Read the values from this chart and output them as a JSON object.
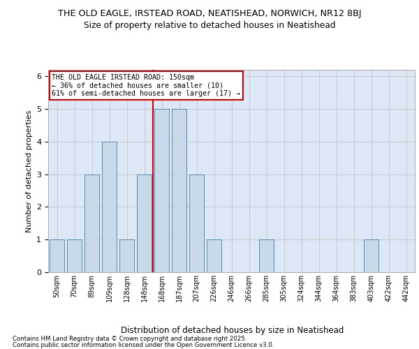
{
  "title_line1": "THE OLD EAGLE, IRSTEAD ROAD, NEATISHEAD, NORWICH, NR12 8BJ",
  "title_line2": "Size of property relative to detached houses in Neatishead",
  "xlabel": "Distribution of detached houses by size in Neatishead",
  "ylabel": "Number of detached properties",
  "bin_labels": [
    "50sqm",
    "70sqm",
    "89sqm",
    "109sqm",
    "128sqm",
    "148sqm",
    "168sqm",
    "187sqm",
    "207sqm",
    "226sqm",
    "246sqm",
    "266sqm",
    "285sqm",
    "305sqm",
    "324sqm",
    "344sqm",
    "364sqm",
    "383sqm",
    "403sqm",
    "422sqm",
    "442sqm"
  ],
  "bar_values": [
    1,
    1,
    3,
    4,
    1,
    3,
    5,
    5,
    3,
    1,
    0,
    0,
    1,
    0,
    0,
    0,
    0,
    0,
    1,
    0,
    0
  ],
  "bar_color": "#c9d9ec",
  "bar_edge_color": "#5a8ab0",
  "red_line_bin": 5,
  "annotation_title": "THE OLD EAGLE IRSTEAD ROAD: 150sqm",
  "annotation_line2": "← 36% of detached houses are smaller (10)",
  "annotation_line3": "61% of semi-detached houses are larger (17) →",
  "annotation_box_color": "#ffffff",
  "annotation_box_edge": "#cc0000",
  "red_line_color": "#cc0000",
  "grid_color": "#cccccc",
  "background_color": "#dce8f5",
  "ylim": [
    0,
    6.2
  ],
  "yticks": [
    0,
    1,
    2,
    3,
    4,
    5,
    6
  ],
  "footnote_line1": "Contains HM Land Registry data © Crown copyright and database right 2025.",
  "footnote_line2": "Contains public sector information licensed under the Open Government Licence v3.0."
}
